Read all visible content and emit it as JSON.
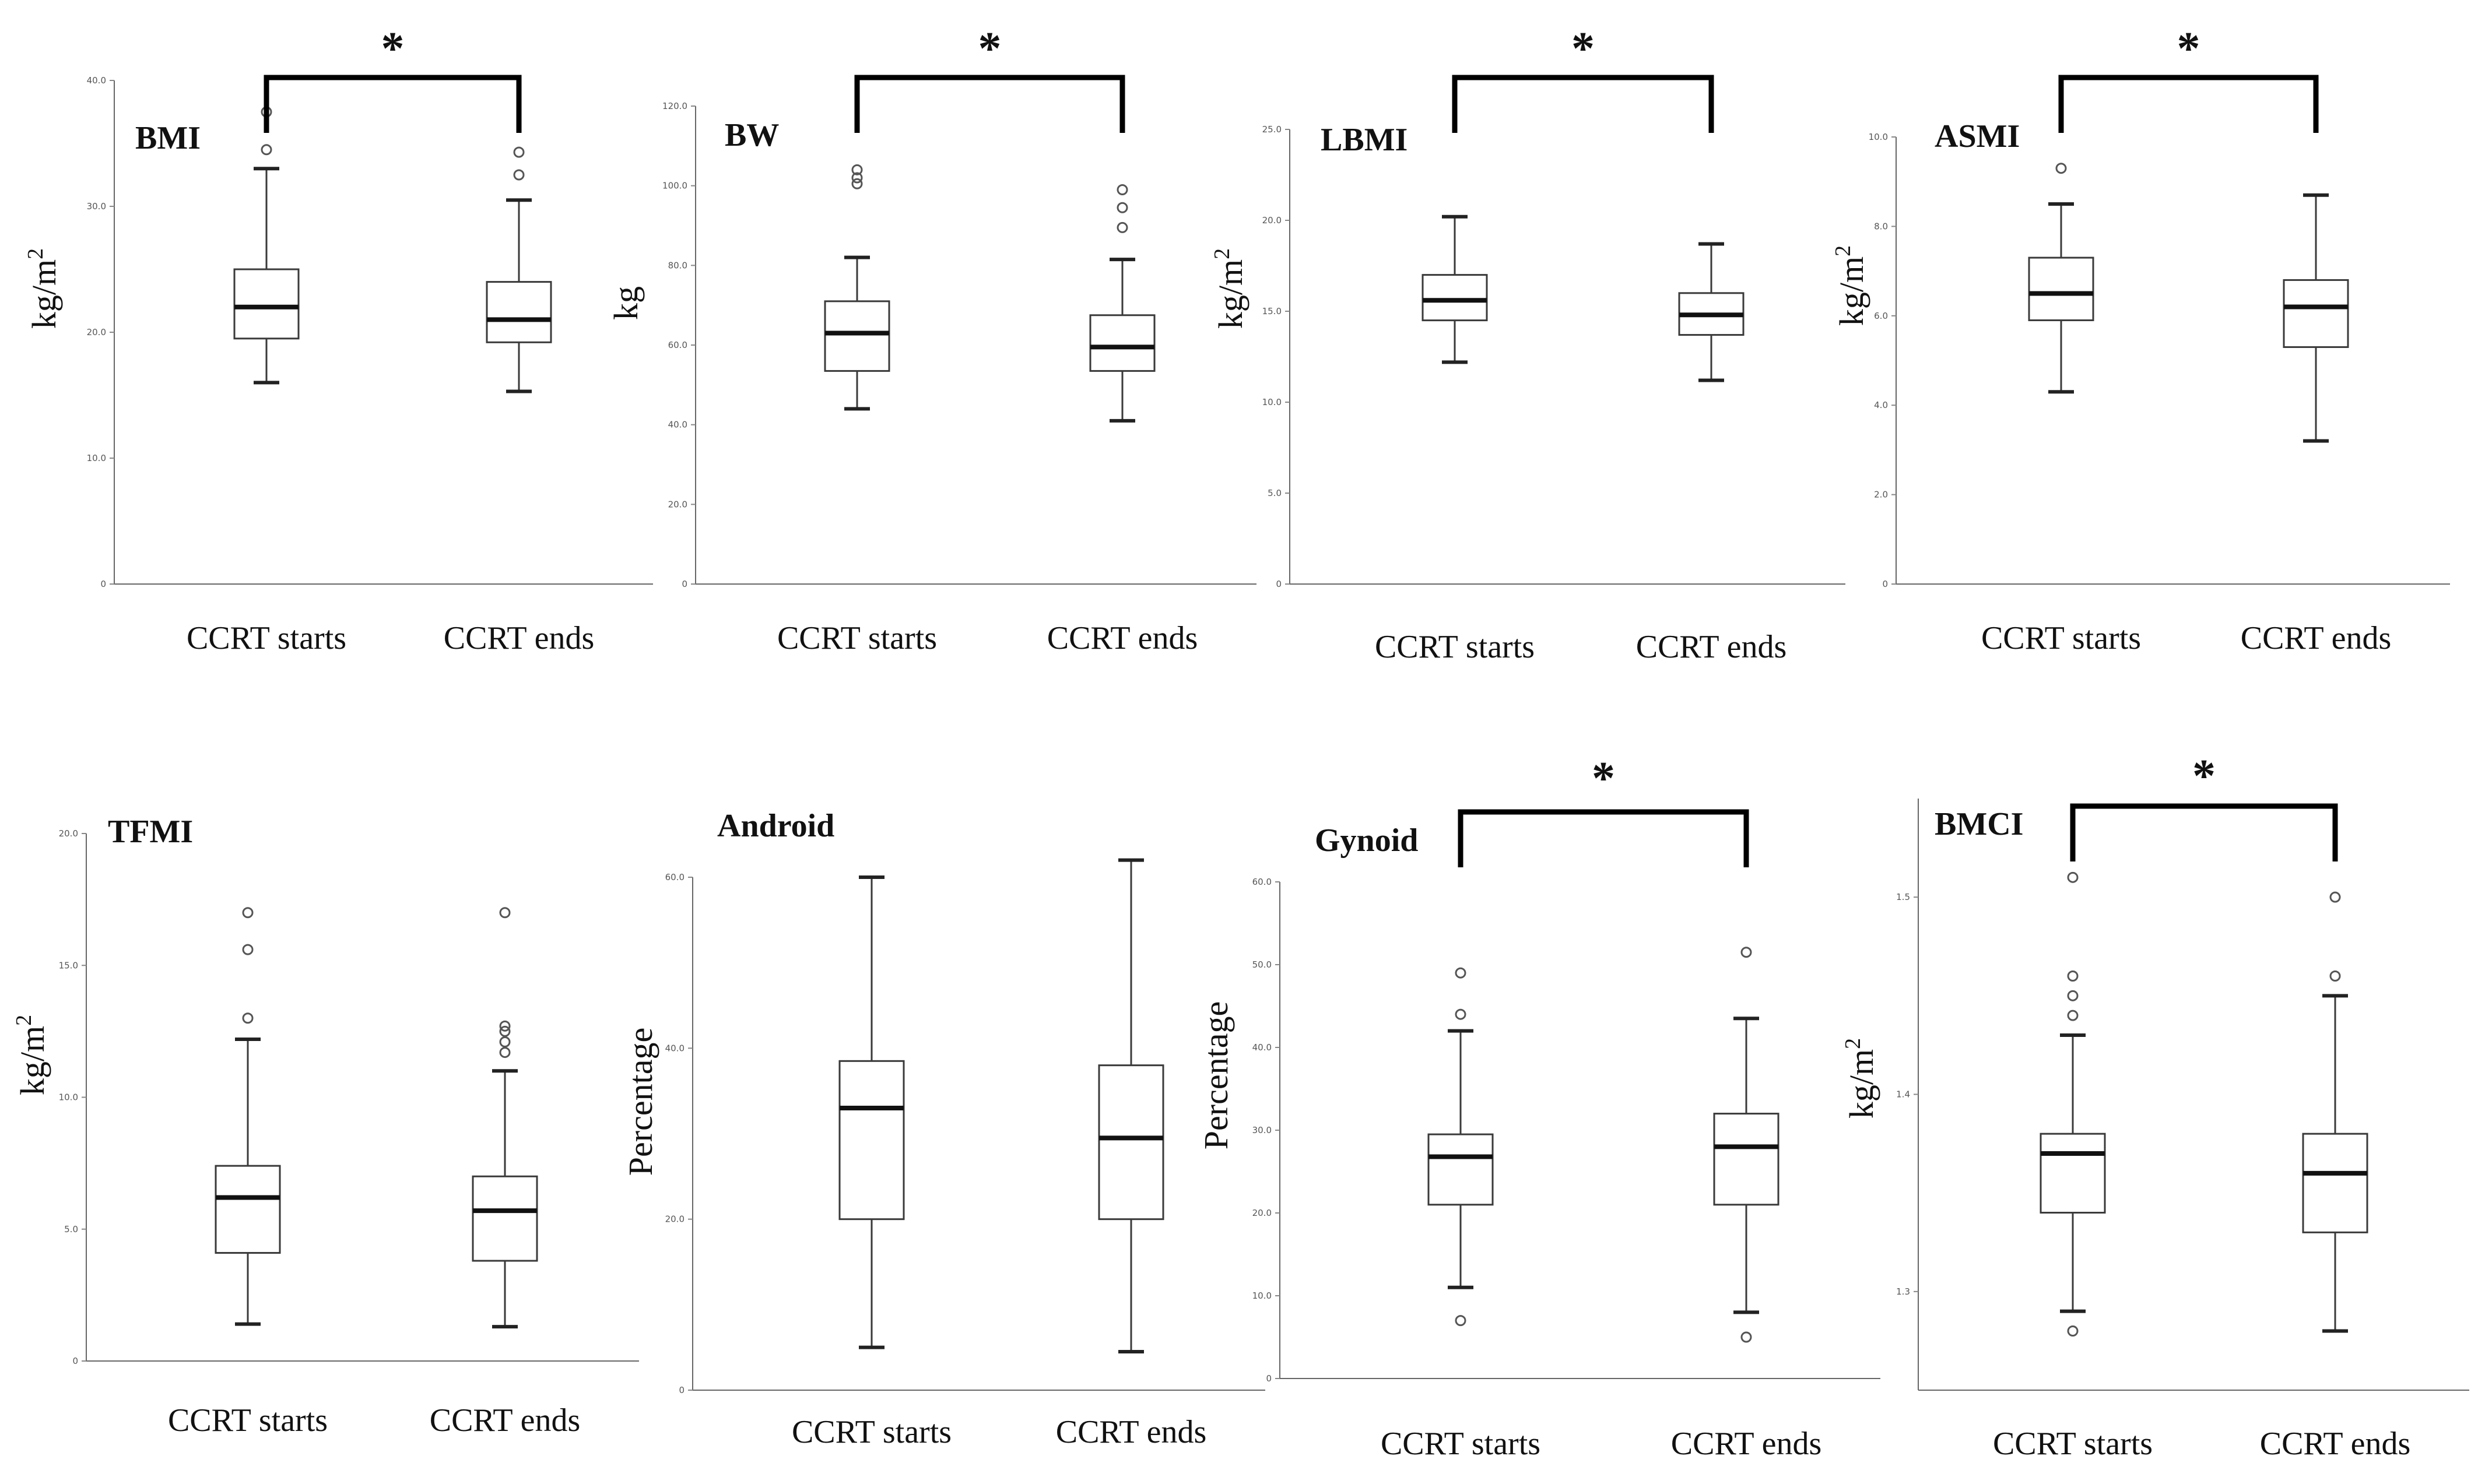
{
  "chart_data": [
    {
      "type": "boxplot",
      "title": "BMI",
      "ylabel": "kg/m2",
      "ylim": [
        0,
        40
      ],
      "yticks": [
        "0",
        "10.0",
        "20.0",
        "30.0",
        "40.0"
      ],
      "yticks_values": [
        0,
        10,
        20,
        30,
        40
      ],
      "categories": [
        "CCRT starts",
        "CCRT ends"
      ],
      "significant": true,
      "significance_label": "*",
      "boxes": [
        {
          "min": 16.0,
          "q1": 19.5,
          "median": 22.0,
          "q3": 25.0,
          "max": 33.0,
          "outliers": [
            34.5,
            37.5
          ]
        },
        {
          "min": 15.3,
          "q1": 19.2,
          "median": 21.0,
          "q3": 24.0,
          "max": 30.5,
          "outliers": [
            32.5,
            34.3
          ]
        }
      ]
    },
    {
      "type": "boxplot",
      "title": "BW",
      "ylabel": "kg",
      "ylim": [
        0,
        120
      ],
      "yticks": [
        "0",
        "20.0",
        "40.0",
        "60.0",
        "80.0",
        "100.0",
        "120.0"
      ],
      "yticks_values": [
        0,
        20,
        40,
        60,
        80,
        100,
        120
      ],
      "categories": [
        "CCRT starts",
        "CCRT ends"
      ],
      "significant": true,
      "significance_label": "*",
      "boxes": [
        {
          "min": 44.0,
          "q1": 53.5,
          "median": 63.0,
          "q3": 71.0,
          "max": 82.0,
          "outliers": [
            100.5,
            102.0,
            104.0
          ]
        },
        {
          "min": 41.0,
          "q1": 53.5,
          "median": 59.5,
          "q3": 67.5,
          "max": 81.5,
          "outliers": [
            89.5,
            94.5,
            99.0
          ]
        }
      ]
    },
    {
      "type": "boxplot",
      "title": "LBMI",
      "ylabel": "kg/m2",
      "ylim": [
        0,
        25
      ],
      "yticks": [
        "0",
        "5.0",
        "10.0",
        "15.0",
        "20.0",
        "25.0"
      ],
      "yticks_values": [
        0,
        5,
        10,
        15,
        20,
        25
      ],
      "categories": [
        "CCRT starts",
        "CCRT ends"
      ],
      "significant": true,
      "significance_label": "*",
      "boxes": [
        {
          "min": 12.2,
          "q1": 14.5,
          "median": 15.6,
          "q3": 17.0,
          "max": 20.2,
          "outliers": []
        },
        {
          "min": 11.2,
          "q1": 13.7,
          "median": 14.8,
          "q3": 16.0,
          "max": 18.7,
          "outliers": []
        }
      ]
    },
    {
      "type": "boxplot",
      "title": "ASMI",
      "ylabel": "kg/m2",
      "ylim": [
        0,
        10
      ],
      "yticks": [
        "0",
        "2.0",
        "4.0",
        "6.0",
        "8.0",
        "10.0"
      ],
      "yticks_values": [
        0,
        2,
        4,
        6,
        8,
        10
      ],
      "categories": [
        "CCRT starts",
        "CCRT ends"
      ],
      "significant": true,
      "significance_label": "*",
      "boxes": [
        {
          "min": 4.3,
          "q1": 5.9,
          "median": 6.5,
          "q3": 7.3,
          "max": 8.5,
          "outliers": [
            9.3
          ]
        },
        {
          "min": 3.2,
          "q1": 5.3,
          "median": 6.2,
          "q3": 6.8,
          "max": 8.7,
          "outliers": []
        }
      ]
    },
    {
      "type": "boxplot",
      "title": "TFMI",
      "ylabel": "kg/m2",
      "ylim": [
        0,
        20
      ],
      "yticks": [
        "0",
        "5.0",
        "10.0",
        "15.0",
        "20.0"
      ],
      "yticks_values": [
        0,
        5,
        10,
        15,
        20
      ],
      "categories": [
        "CCRT starts",
        "CCRT ends"
      ],
      "significant": false,
      "significance_label": "",
      "boxes": [
        {
          "min": 1.4,
          "q1": 4.1,
          "median": 6.2,
          "q3": 7.4,
          "max": 12.2,
          "outliers": [
            13.0,
            15.6,
            17.0
          ]
        },
        {
          "min": 1.3,
          "q1": 3.8,
          "median": 5.7,
          "q3": 7.0,
          "max": 11.0,
          "outliers": [
            11.7,
            12.1,
            12.5,
            12.7,
            17.0
          ]
        }
      ]
    },
    {
      "type": "boxplot",
      "title": "Android",
      "ylabel": "Percentage",
      "ylim": [
        0,
        60
      ],
      "yticks": [
        "0",
        "20.0",
        "40.0",
        "60.0"
      ],
      "yticks_values": [
        0,
        20,
        40,
        60
      ],
      "categories": [
        "CCRT starts",
        "CCRT ends"
      ],
      "significant": false,
      "significance_label": "",
      "boxes": [
        {
          "min": 5.0,
          "q1": 20.0,
          "median": 33.0,
          "q3": 38.5,
          "max": 60.0,
          "outliers": []
        },
        {
          "min": 4.5,
          "q1": 20.0,
          "median": 29.5,
          "q3": 38.0,
          "max": 62.0,
          "outliers": []
        }
      ]
    },
    {
      "type": "boxplot",
      "title": "Gynoid",
      "ylabel": "Percentage",
      "ylim": [
        0,
        60
      ],
      "yticks": [
        "0",
        "10.0",
        "20.0",
        "30.0",
        "40.0",
        "50.0",
        "60.0"
      ],
      "yticks_values": [
        0,
        10,
        20,
        30,
        40,
        50,
        60
      ],
      "categories": [
        "CCRT starts",
        "CCRT ends"
      ],
      "significant": true,
      "significance_label": "*",
      "boxes": [
        {
          "min": 11.0,
          "q1": 21.0,
          "median": 26.8,
          "q3": 29.5,
          "max": 42.0,
          "outliers": [
            7.0,
            44.0,
            49.0
          ]
        },
        {
          "min": 8.0,
          "q1": 21.0,
          "median": 28.0,
          "q3": 32.0,
          "max": 43.5,
          "outliers": [
            5.0,
            51.5
          ]
        }
      ]
    },
    {
      "type": "boxplot",
      "title": "BMCI",
      "ylabel": "kg/m2",
      "ylim": [
        1.25,
        1.55
      ],
      "yticks": [
        "1.3",
        "1.4",
        "1.5"
      ],
      "yticks_values": [
        1.3,
        1.4,
        1.5
      ],
      "categories": [
        "CCRT starts",
        "CCRT ends"
      ],
      "significant": true,
      "significance_label": "*",
      "boxes": [
        {
          "min": 1.29,
          "q1": 1.34,
          "median": 1.37,
          "q3": 1.38,
          "max": 1.43,
          "outliers": [
            1.28,
            1.44,
            1.45,
            1.46,
            1.51
          ]
        },
        {
          "min": 1.28,
          "q1": 1.33,
          "median": 1.36,
          "q3": 1.38,
          "max": 1.45,
          "outliers": [
            1.46,
            1.5
          ]
        }
      ]
    }
  ]
}
